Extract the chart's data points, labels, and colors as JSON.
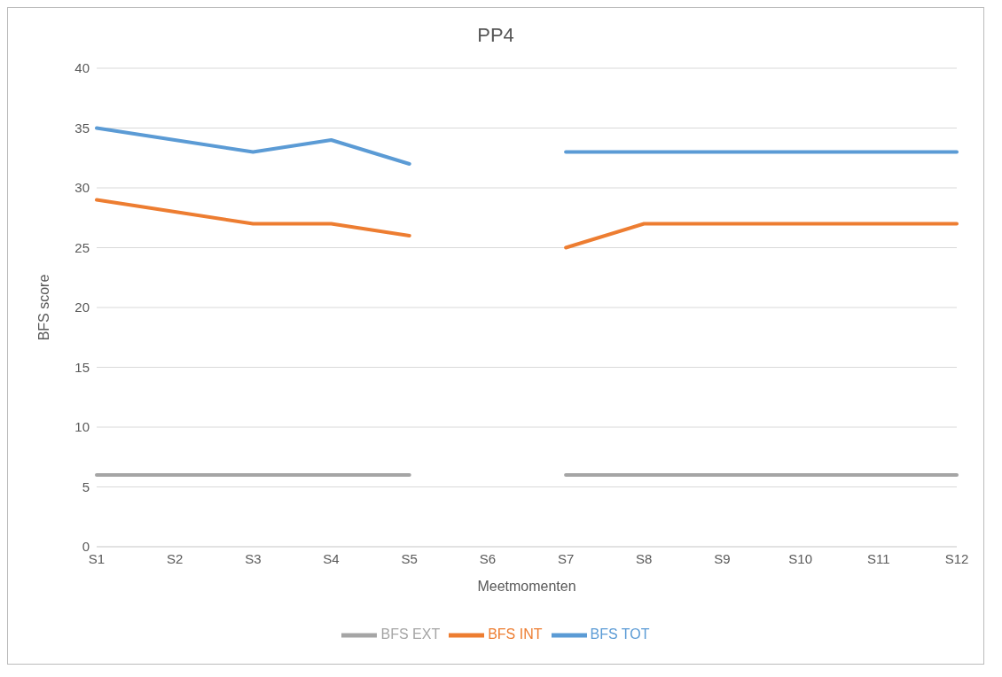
{
  "chart_data": {
    "type": "line",
    "title": "PP4",
    "xlabel": "Meetmomenten",
    "ylabel": "BFS score",
    "categories": [
      "S1",
      "S2",
      "S3",
      "S4",
      "S5",
      "S6",
      "S7",
      "S8",
      "S9",
      "S10",
      "S11",
      "S12"
    ],
    "series": [
      {
        "name": "BFS TOT",
        "color": "#5b9bd5",
        "values": [
          35,
          34,
          33,
          34,
          32,
          null,
          33,
          33,
          33,
          33,
          33,
          33
        ]
      },
      {
        "name": "BFS INT",
        "color": "#ed7d31",
        "values": [
          29,
          28,
          27,
          27,
          26,
          null,
          25,
          27,
          27,
          27,
          27,
          27
        ]
      },
      {
        "name": "BFS EXT",
        "color": "#a5a5a5",
        "values": [
          6,
          6,
          6,
          6,
          6,
          null,
          6,
          6,
          6,
          6,
          6,
          6
        ]
      }
    ],
    "ylim": [
      0,
      40
    ],
    "yticks": [
      0,
      5,
      10,
      15,
      20,
      25,
      30,
      35,
      40
    ],
    "grid": "y",
    "legend": "bottom",
    "marker": "none",
    "line_style": "solid"
  }
}
